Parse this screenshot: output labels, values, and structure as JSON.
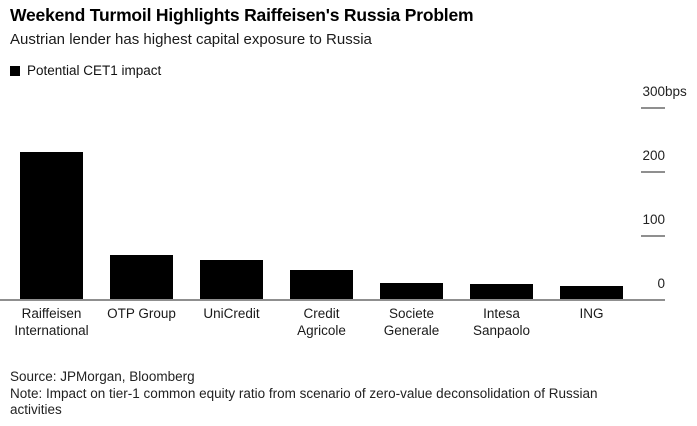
{
  "chart_data": {
    "type": "bar",
    "title": "Weekend Turmoil Highlights Raiffeisen's Russia Problem",
    "subtitle": "Austrian lender has highest capital exposure to Russia",
    "legend": [
      "Potential CET1 impact"
    ],
    "legend_position": "top-left",
    "categories": [
      "Raiffeisen International",
      "OTP Group",
      "UniCredit",
      "Credit Agricole",
      "Societe Generale",
      "Intesa Sanpaolo",
      "ING"
    ],
    "category_label_lines": [
      [
        "Raiffeisen",
        "International"
      ],
      [
        "OTP Group"
      ],
      [
        "UniCredit"
      ],
      [
        "Credit",
        "Agricole"
      ],
      [
        "Societe",
        "Generale"
      ],
      [
        "Intesa",
        "Sanpaolo"
      ],
      [
        "ING"
      ]
    ],
    "values": [
      230,
      68,
      61,
      46,
      25,
      24,
      20
    ],
    "unit": "bps",
    "ylim": [
      0,
      300
    ],
    "yticks": [
      0,
      100,
      200,
      300
    ],
    "axis_side": "right",
    "grid": false,
    "bar_color": "#000000",
    "axis_color": "#8f8f8f",
    "source": "Source: JPMorgan, Bloomberg",
    "note_lines": [
      "Note: Impact on tier-1 common equity ratio from scenario of zero-value deconsolidation of Russian",
      "activities"
    ]
  }
}
